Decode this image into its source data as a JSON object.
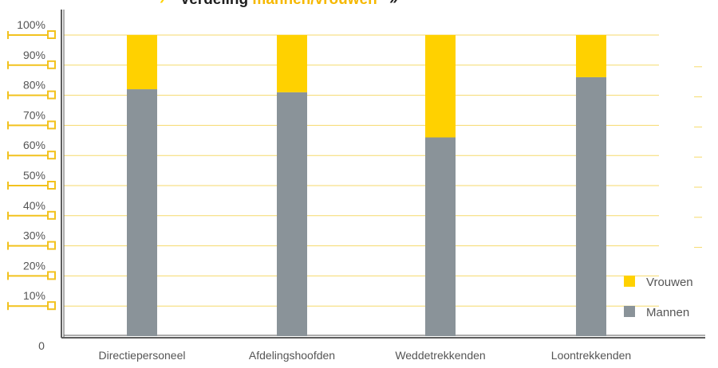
{
  "title": {
    "arrow": "›",
    "prefix": "Verdeling ",
    "highlight": "mannen/vrouwen",
    "suffix": "»"
  },
  "colors": {
    "mannen": "#8A9399",
    "vrouwen": "#FFD100",
    "gridline": "#F6DA6B",
    "tick_marker": "#F2C21E",
    "axis": "#5E5E5E",
    "text": "#555555",
    "title_text": "#1F1F1F"
  },
  "chart_data": {
    "type": "bar",
    "stacked": true,
    "percent": true,
    "categories": [
      "Directiepersoneel",
      "Afdelingshoofden",
      "Weddetrekkenden",
      "Loontrekkenden"
    ],
    "series": [
      {
        "name": "Mannen",
        "values": [
          82,
          81,
          66,
          86
        ]
      },
      {
        "name": "Vrouwen",
        "values": [
          18,
          19,
          34,
          14
        ]
      }
    ],
    "ylim": [
      0,
      100
    ],
    "y_ticks": [
      "0",
      "10%",
      "20%",
      "30%",
      "40%",
      "50%",
      "60%",
      "70%",
      "80%",
      "90%",
      "100%"
    ],
    "grid": true,
    "legend_position": "bottom-right"
  }
}
